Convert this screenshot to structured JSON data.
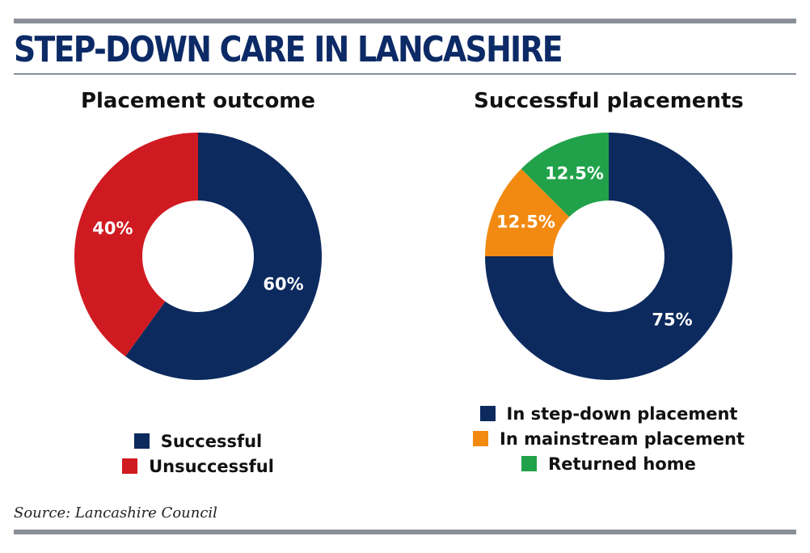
{
  "title": "STEP-DOWN CARE IN LANCASHIRE",
  "source": "Source: Lancashire Council",
  "chart_data": [
    {
      "type": "pie",
      "donut": true,
      "title": "Placement outcome",
      "categories": [
        "Successful",
        "Unsuccessful"
      ],
      "values": [
        60,
        40
      ],
      "labels": [
        "60%",
        "40%"
      ],
      "colors": [
        "#0c2a5e",
        "#d01a21"
      ],
      "legend_position": "bottom"
    },
    {
      "type": "pie",
      "donut": true,
      "title": "Successful placements",
      "categories": [
        "In step-down placement",
        "In mainstream placement",
        "Returned home"
      ],
      "values": [
        75,
        12.5,
        12.5
      ],
      "labels": [
        "75%",
        "12.5%",
        "12.5%"
      ],
      "colors": [
        "#0c2a5e",
        "#f28a12",
        "#21a24a"
      ],
      "legend_position": "bottom"
    }
  ]
}
